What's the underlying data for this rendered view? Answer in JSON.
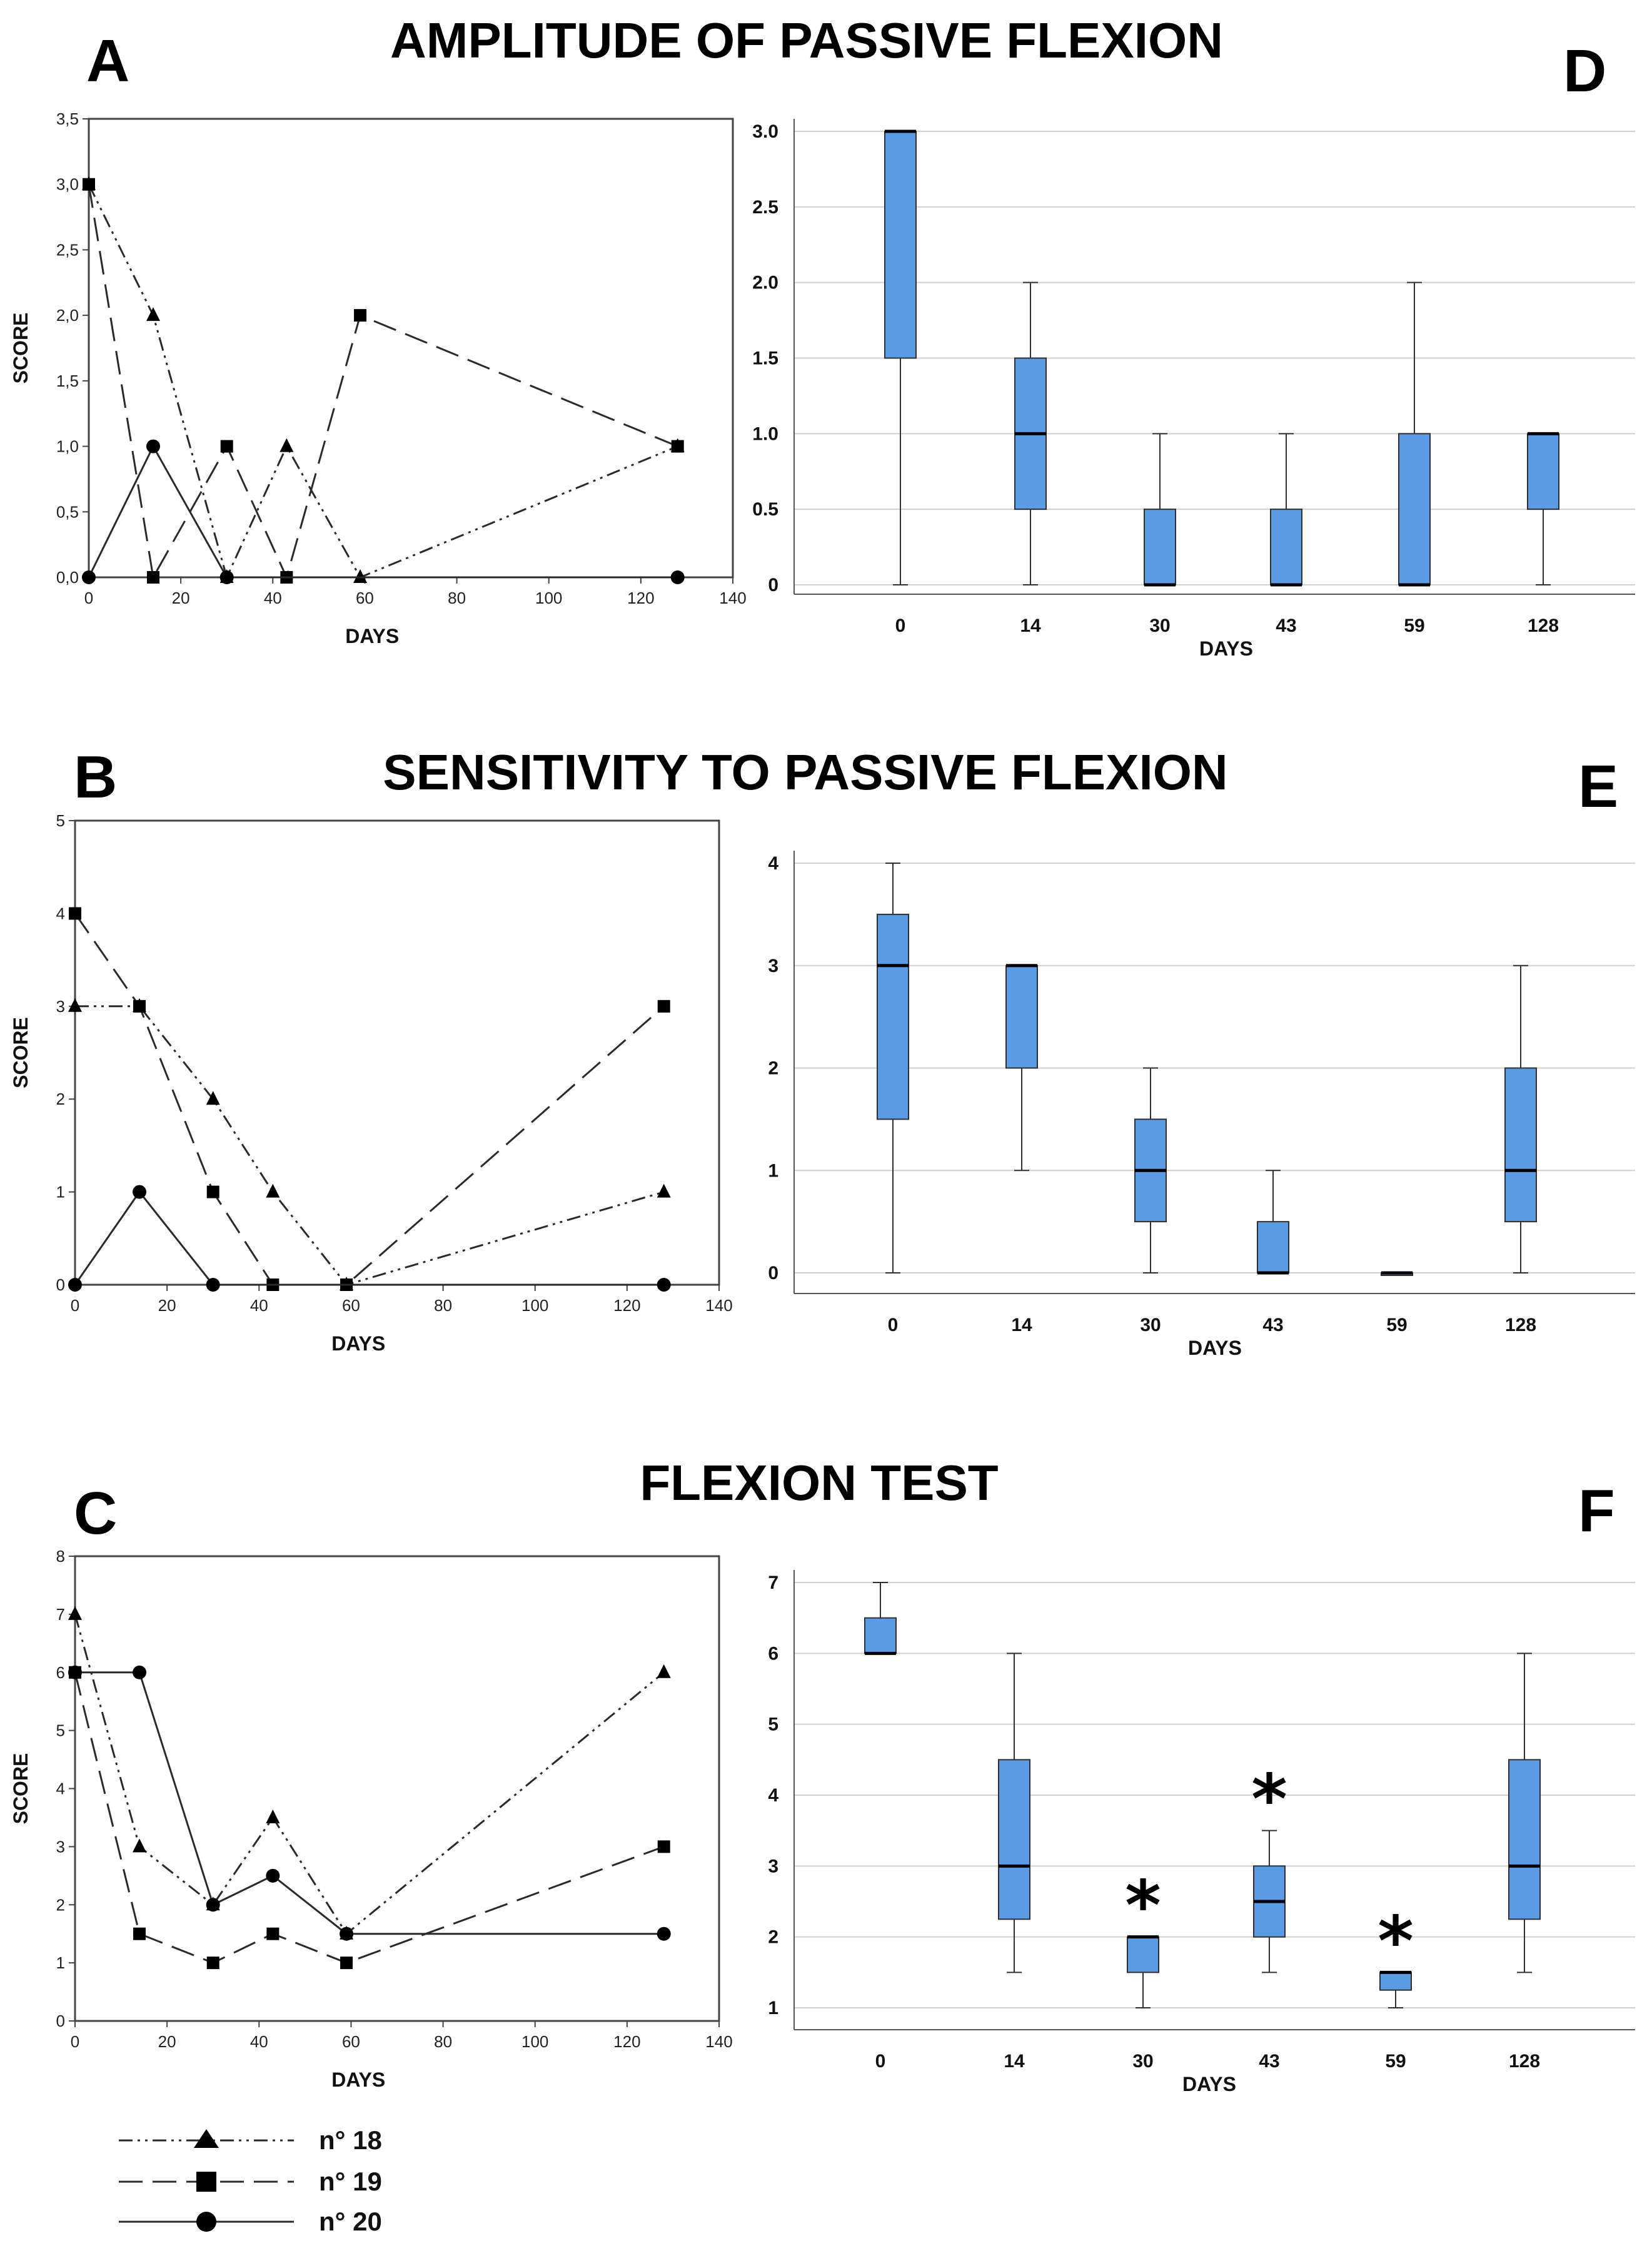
{
  "figure": {
    "sections": [
      {
        "letter_left": "A",
        "title": "AMPLITUDE OF PASSIVE FLEXION",
        "letter_right": "D"
      },
      {
        "letter_left": "B",
        "title": "SENSITIVITY TO PASSIVE FLEXION",
        "letter_right": "E"
      },
      {
        "letter_left": "C",
        "title": "FLEXION TEST",
        "letter_right": "F"
      }
    ],
    "legend": [
      {
        "label": "n° 18",
        "style": "dash-dot-dot",
        "marker": "triangle"
      },
      {
        "label": "n° 19",
        "style": "dashed",
        "marker": "square"
      },
      {
        "label": "n° 20",
        "style": "solid",
        "marker": "circle"
      }
    ],
    "colors": {
      "box_fill": "#5b9be6",
      "box_stroke": "#2f2f2f",
      "line": "#2a2a2a",
      "grid": "#d0d0d0"
    }
  },
  "chart_data": [
    {
      "panel": "A",
      "type": "line",
      "xlabel": "DAYS",
      "ylabel": "SCORE",
      "xlim": [
        0,
        140
      ],
      "ylim": [
        0,
        3.5
      ],
      "xticks": [
        "0",
        "20",
        "40",
        "60",
        "80",
        "100",
        "120",
        "140"
      ],
      "yticks": [
        "0,0",
        "0,5",
        "1,0",
        "1,5",
        "2,0",
        "2,5",
        "3,0",
        "3,5"
      ],
      "series": [
        {
          "name": "n° 18",
          "x": [
            0,
            14,
            30,
            43,
            59,
            128
          ],
          "y": [
            3,
            2,
            0,
            1,
            0,
            1
          ]
        },
        {
          "name": "n° 19",
          "x": [
            0,
            14,
            30,
            43,
            59,
            128
          ],
          "y": [
            3,
            0,
            1,
            0,
            2,
            1
          ]
        },
        {
          "name": "n° 20",
          "x": [
            0,
            14,
            30,
            128
          ],
          "y": [
            0,
            1,
            0,
            0
          ]
        }
      ]
    },
    {
      "panel": "D",
      "type": "box",
      "xlabel": "DAYS",
      "ylim": [
        0,
        3.0
      ],
      "yticks": [
        "0",
        "0.5",
        "1.0",
        "1.5",
        "2.0",
        "2.5",
        "3.0"
      ],
      "categories": [
        "0",
        "14",
        "30",
        "43",
        "59",
        "128"
      ],
      "boxes": [
        {
          "min": 0,
          "q1": 1.5,
          "median": 3,
          "q3": 3,
          "max": 3
        },
        {
          "min": 0,
          "q1": 0.5,
          "median": 1,
          "q3": 1.5,
          "max": 2
        },
        {
          "min": 0,
          "q1": 0,
          "median": 0,
          "q3": 0.5,
          "max": 1
        },
        {
          "min": 0,
          "q1": 0,
          "median": 0,
          "q3": 0.5,
          "max": 1
        },
        {
          "min": 0,
          "q1": 0,
          "median": 0,
          "q3": 1,
          "max": 2
        },
        {
          "min": 0,
          "q1": 0.5,
          "median": 1,
          "q3": 1,
          "max": 1
        }
      ]
    },
    {
      "panel": "B",
      "type": "line",
      "xlabel": "DAYS",
      "ylabel": "SCORE",
      "xlim": [
        0,
        140
      ],
      "ylim": [
        0,
        5
      ],
      "xticks": [
        "0",
        "20",
        "40",
        "60",
        "80",
        "100",
        "120",
        "140"
      ],
      "yticks": [
        "0",
        "1",
        "2",
        "3",
        "4",
        "5"
      ],
      "series": [
        {
          "name": "n° 18",
          "x": [
            0,
            14,
            30,
            43,
            59,
            128
          ],
          "y": [
            3,
            3,
            2,
            1,
            0,
            1
          ]
        },
        {
          "name": "n° 19",
          "x": [
            0,
            14,
            30,
            43,
            59,
            128
          ],
          "y": [
            4,
            3,
            1,
            0,
            0,
            3
          ]
        },
        {
          "name": "n° 20",
          "x": [
            0,
            14,
            30,
            128
          ],
          "y": [
            0,
            1,
            0,
            0
          ]
        }
      ]
    },
    {
      "panel": "E",
      "type": "box",
      "xlabel": "DAYS",
      "ylim": [
        0,
        4
      ],
      "yticks": [
        "0",
        "1",
        "2",
        "3",
        "4"
      ],
      "categories": [
        "0",
        "14",
        "30",
        "43",
        "59",
        "128"
      ],
      "boxes": [
        {
          "min": 0,
          "q1": 1.5,
          "median": 3,
          "q3": 3.5,
          "max": 4
        },
        {
          "min": 1,
          "q1": 2,
          "median": 3,
          "q3": 3,
          "max": 3
        },
        {
          "min": 0,
          "q1": 0.5,
          "median": 1,
          "q3": 1.5,
          "max": 2
        },
        {
          "min": 0,
          "q1": 0,
          "median": 0,
          "q3": 0.5,
          "max": 1
        },
        {
          "min": 0,
          "q1": 0,
          "median": 0,
          "q3": 0,
          "max": 0
        },
        {
          "min": 0,
          "q1": 0.5,
          "median": 1,
          "q3": 2,
          "max": 3
        }
      ]
    },
    {
      "panel": "C",
      "type": "line",
      "xlabel": "DAYS",
      "ylabel": "SCORE",
      "xlim": [
        0,
        140
      ],
      "ylim": [
        0,
        8
      ],
      "xticks": [
        "0",
        "20",
        "40",
        "60",
        "80",
        "100",
        "120",
        "140"
      ],
      "yticks": [
        "0",
        "1",
        "2",
        "3",
        "4",
        "5",
        "6",
        "7",
        "8"
      ],
      "series": [
        {
          "name": "n° 18",
          "x": [
            0,
            14,
            30,
            43,
            59,
            128
          ],
          "y": [
            7,
            3,
            2,
            3.5,
            1.5,
            6
          ]
        },
        {
          "name": "n° 19",
          "x": [
            0,
            14,
            30,
            43,
            59,
            128
          ],
          "y": [
            6,
            1.5,
            1,
            1.5,
            1,
            3
          ]
        },
        {
          "name": "n° 20",
          "x": [
            0,
            14,
            30,
            43,
            59,
            128
          ],
          "y": [
            6,
            6,
            2,
            2.5,
            1.5,
            1.5
          ]
        }
      ]
    },
    {
      "panel": "F",
      "type": "box",
      "xlabel": "DAYS",
      "ylim": [
        1,
        7
      ],
      "yticks": [
        "1",
        "2",
        "3",
        "4",
        "5",
        "6",
        "7"
      ],
      "categories": [
        "0",
        "14",
        "30",
        "43",
        "59",
        "128"
      ],
      "boxes": [
        {
          "min": 6,
          "q1": 6,
          "median": 6,
          "q3": 6.5,
          "max": 7
        },
        {
          "min": 1.5,
          "q1": 2.25,
          "median": 3,
          "q3": 4.5,
          "max": 6
        },
        {
          "min": 1,
          "q1": 1.5,
          "median": 2,
          "q3": 2,
          "max": 2
        },
        {
          "min": 1.5,
          "q1": 2,
          "median": 2.5,
          "q3": 3,
          "max": 3.5
        },
        {
          "min": 1,
          "q1": 1.25,
          "median": 1.5,
          "q3": 1.5,
          "max": 1.5
        },
        {
          "min": 1.5,
          "q1": 2.25,
          "median": 3,
          "q3": 4.5,
          "max": 6
        }
      ],
      "significance": [
        {
          "category": "30",
          "marker": "*"
        },
        {
          "category": "43",
          "marker": "*"
        },
        {
          "category": "59",
          "marker": "*"
        }
      ]
    }
  ]
}
